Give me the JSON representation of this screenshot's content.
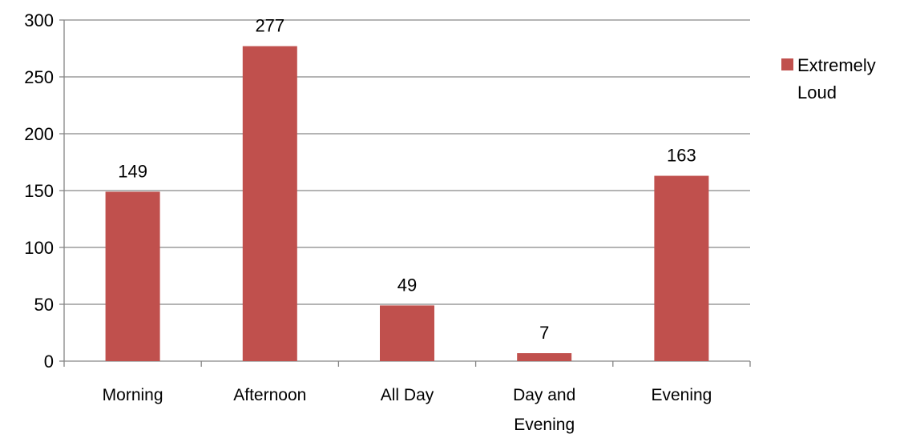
{
  "chart_data": {
    "type": "bar",
    "categories": [
      "Morning",
      "Afternoon",
      "All Day",
      "Day and Evening",
      "Evening"
    ],
    "category_lines": [
      [
        "Morning"
      ],
      [
        "Afternoon"
      ],
      [
        "All Day"
      ],
      [
        "Day and",
        "Evening"
      ],
      [
        "Evening"
      ]
    ],
    "series": [
      {
        "name": "Extremely Loud",
        "name_lines": [
          "Extremely",
          "Loud"
        ],
        "values": [
          149,
          277,
          49,
          7,
          163
        ],
        "color": "#c0504d"
      }
    ],
    "data_labels": [
      "149",
      "277",
      "49",
      "7",
      "163"
    ],
    "ylim": [
      0,
      300
    ],
    "yticks": [
      0,
      50,
      100,
      150,
      200,
      250,
      300
    ],
    "ytick_labels": [
      "0",
      "50",
      "100",
      "150",
      "200",
      "250",
      "300"
    ],
    "grid": true,
    "legend": "right",
    "title": "",
    "xlabel": "",
    "ylabel": ""
  }
}
